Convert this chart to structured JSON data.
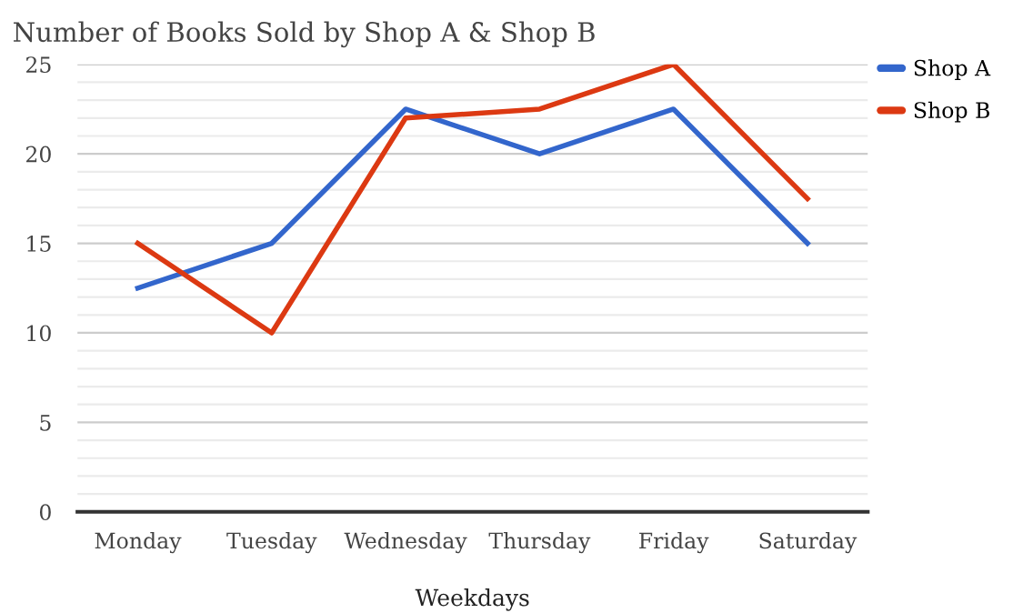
{
  "chart_data": {
    "type": "line",
    "title": "Number of Books Sold by Shop A & Shop B",
    "xlabel": "Weekdays",
    "categories": [
      "Monday",
      "Tuesday",
      "Wednesday",
      "Thursday",
      "Friday",
      "Saturday"
    ],
    "series": [
      {
        "name": "Shop A",
        "color": "#3366cc",
        "values": [
          12.5,
          15,
          22.5,
          20,
          22.5,
          15
        ]
      },
      {
        "name": "Shop B",
        "color": "#dc3912",
        "values": [
          15,
          10,
          22,
          22.5,
          25,
          17.5
        ]
      }
    ],
    "ylim": [
      0,
      25
    ],
    "yticks": [
      0,
      5,
      10,
      15,
      20,
      25
    ],
    "grid": "y",
    "legend": "top right",
    "marker": "none",
    "line_style": "solid"
  }
}
